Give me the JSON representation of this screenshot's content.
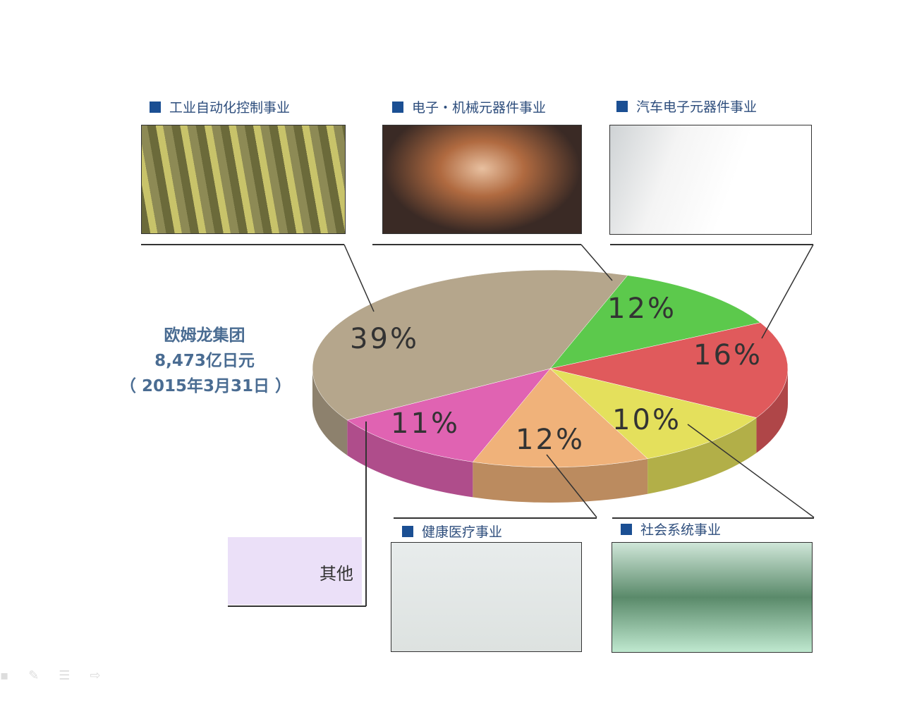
{
  "chart_data": {
    "type": "pie",
    "title": "",
    "center_label": {
      "line1": "欧姆龙集团",
      "line2": "8,473亿日元",
      "line3": "（ 2015年3月31日 ）"
    },
    "slices": [
      {
        "name": "电子・机械元器件事业",
        "value": 12,
        "label": "12%",
        "color": "#5cc94c"
      },
      {
        "name": "汽车电子元器件事业",
        "value": 16,
        "label": "16%",
        "color": "#e05a5c"
      },
      {
        "name": "社会系统事业",
        "value": 10,
        "label": "10%",
        "color": "#e4e05c"
      },
      {
        "name": "健康医疗事业",
        "value": 12,
        "label": "12%",
        "color": "#f0b27a"
      },
      {
        "name": "其他",
        "value": 11,
        "label": "11%",
        "color": "#e063b2"
      },
      {
        "name": "工业自动化控制事业",
        "value": 39,
        "label": "39%",
        "color": "#b5a68c"
      }
    ]
  },
  "categories": {
    "iab": "工业自动化控制事业",
    "emc": "电子・机械元器件事业",
    "aec": "汽车电子元器件事业",
    "hcb": "健康医疗事业",
    "ssb": "社会系统事业",
    "other": "其他"
  },
  "accent_color": "#1b4f93"
}
